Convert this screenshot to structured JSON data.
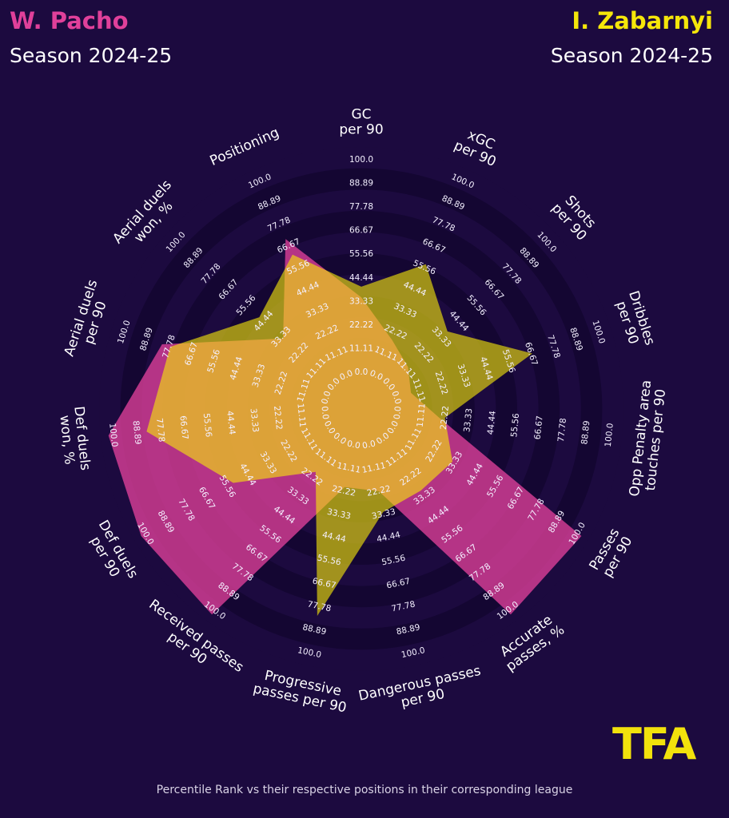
{
  "header": {
    "left_player": "W. Pacho",
    "left_season": "Season 2024-25",
    "right_player": "I. Zabarnyi",
    "right_season": "Season 2024-25"
  },
  "footer_note": "Percentile Rank vs their respective positions in their corresponding league",
  "logo_text": "TFA",
  "colors": {
    "background": "#1c0a3f",
    "pacho": "#e0409a",
    "zabarnyi": "#f5e60a",
    "ring_dark": "#140632",
    "ring_light": "#1c0a3f",
    "label": "#ffffff"
  },
  "chart_data": {
    "type": "radar",
    "title": "",
    "rlim": [
      0,
      100
    ],
    "ring_tick_labels": [
      "0.0",
      "11.11",
      "22.22",
      "33.33",
      "44.44",
      "55.56",
      "66.67",
      "77.78",
      "88.89",
      "100.0"
    ],
    "metrics": [
      "GC\nper 90",
      "xGC\nper 90",
      "Shots\nper 90",
      "Dribbles\nper 90",
      "Opp Penalty area\ntouches per 90",
      "Passes\nper 90",
      "Accurate\npasses, %",
      "Dangerous passes\nper 90",
      "Progressive\npasses per 90",
      "Received passes\nper 90",
      "Def duels\nper 90",
      "Def duels\nwon, %",
      "Aerial duels\nper 90",
      "Aerial duels\nwon, %",
      "Positioning"
    ],
    "series": [
      {
        "name": "W. Pacho",
        "color": "#e0409a",
        "values": [
          33,
          16,
          10,
          5,
          17,
          100,
          100,
          20,
          18,
          100,
          100,
          100,
          79,
          30,
          68
        ]
      },
      {
        "name": "I. Zabarnyi",
        "color": "#f5e60a",
        "values": [
          38,
          55,
          35,
          65,
          20,
          30,
          28,
          30,
          80,
          17,
          50,
          82,
          75,
          45,
          60
        ]
      }
    ]
  }
}
